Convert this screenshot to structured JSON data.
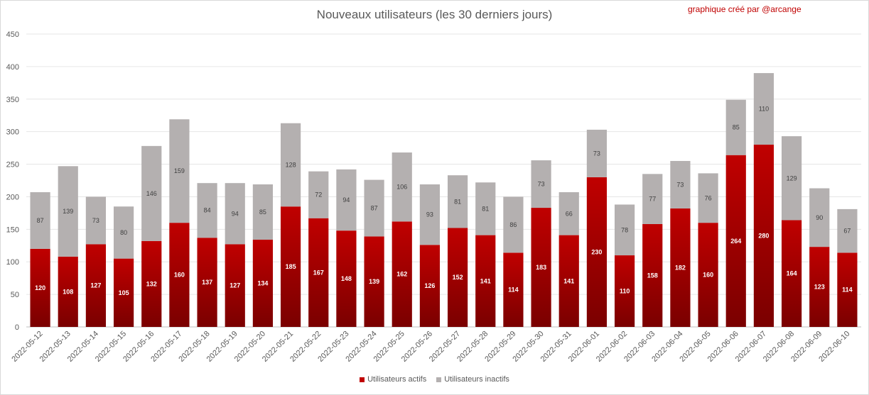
{
  "title": "Nouveaux utilisateurs  (les 30 derniers  jours)",
  "credit": "graphique créé par @arcange",
  "legend": {
    "active_label": "Utilisateurs actifs",
    "inactive_label": "Utilisateurs inactifs"
  },
  "colors": {
    "active": "#c00000",
    "active_dark": "#7a0000",
    "inactive": "#b4b0b0",
    "grid": "#e6e6e6"
  },
  "chart_data": {
    "type": "bar",
    "stacked": true,
    "title": "Nouveaux utilisateurs  (les 30 derniers  jours)",
    "ylim": [
      0,
      450
    ],
    "yticks": [
      0,
      50,
      100,
      150,
      200,
      250,
      300,
      350,
      400,
      450
    ],
    "grid": true,
    "legend_position": "bottom",
    "categories": [
      "2022-05-12",
      "2022-05-13",
      "2022-05-14",
      "2022-05-15",
      "2022-05-16",
      "2022-05-17",
      "2022-05-18",
      "2022-05-19",
      "2022-05-20",
      "2022-05-21",
      "2022-05-22",
      "2022-05-23",
      "2022-05-24",
      "2022-05-25",
      "2022-05-26",
      "2022-05-27",
      "2022-05-28",
      "2022-05-29",
      "2022-05-30",
      "2022-05-31",
      "2022-06-01",
      "2022-06-02",
      "2022-06-03",
      "2022-06-04",
      "2022-06-05",
      "2022-06-06",
      "2022-06-07",
      "2022-06-08",
      "2022-06-09",
      "2022-06-10"
    ],
    "series": [
      {
        "name": "Utilisateurs actifs",
        "values": [
          120,
          108,
          127,
          105,
          132,
          160,
          137,
          127,
          134,
          185,
          167,
          148,
          139,
          162,
          126,
          152,
          141,
          114,
          183,
          141,
          230,
          110,
          158,
          182,
          160,
          264,
          280,
          164,
          123,
          114
        ]
      },
      {
        "name": "Utilisateurs inactifs",
        "values": [
          87,
          139,
          73,
          80,
          146,
          159,
          84,
          94,
          85,
          128,
          72,
          94,
          87,
          106,
          93,
          81,
          81,
          86,
          73,
          66,
          73,
          78,
          77,
          73,
          76,
          85,
          110,
          129,
          90,
          67
        ]
      }
    ]
  }
}
